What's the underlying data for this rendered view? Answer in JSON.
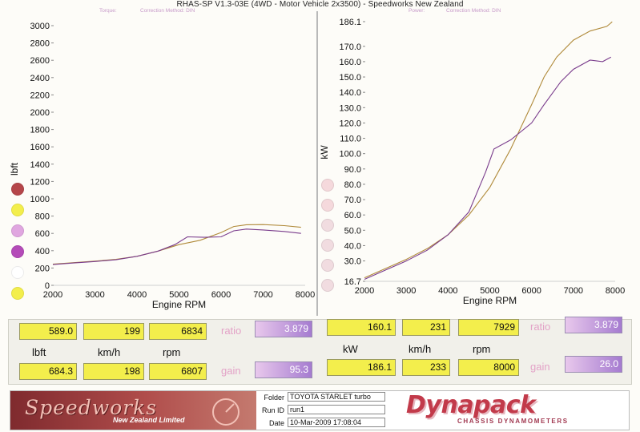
{
  "header": {
    "title": "RHAS-SP V1.3-03E  (4WD - Motor Vehicle 2x3500) - Speedworks New Zealand",
    "left_torque_label": "Torque:",
    "left_correction": "Correction Method: DIN",
    "right_power_label": "Power:",
    "right_correction": "Correction Method: DIN"
  },
  "chart_data": [
    {
      "type": "line",
      "title": "",
      "xlabel": "Engine RPM",
      "ylabel": "lbft",
      "xlim": [
        2000,
        8000
      ],
      "ylim": [
        0,
        3000
      ],
      "xticks": [
        "2000",
        "3000",
        "4000",
        "5000",
        "6000",
        "7000",
        "8000"
      ],
      "yticks": [
        "0",
        "200",
        "400",
        "600",
        "800",
        "1000",
        "1200",
        "1400",
        "1600",
        "1800",
        "2000",
        "2200",
        "2400",
        "2600",
        "2800",
        "3000"
      ],
      "series": [
        {
          "color": "#b08a3a",
          "points": [
            [
              2000,
              245
            ],
            [
              2500,
              262
            ],
            [
              3000,
              280
            ],
            [
              3500,
              300
            ],
            [
              4000,
              335
            ],
            [
              4500,
              395
            ],
            [
              5000,
              470
            ],
            [
              5500,
              520
            ],
            [
              6000,
              610
            ],
            [
              6300,
              680
            ],
            [
              6600,
              700
            ],
            [
              7000,
              702
            ],
            [
              7500,
              690
            ],
            [
              7900,
              670
            ]
          ]
        },
        {
          "color": "#7a3c8c",
          "points": [
            [
              2000,
              240
            ],
            [
              2500,
              258
            ],
            [
              3000,
              275
            ],
            [
              3500,
              295
            ],
            [
              4000,
              335
            ],
            [
              4500,
              395
            ],
            [
              4900,
              470
            ],
            [
              5200,
              560
            ],
            [
              5600,
              555
            ],
            [
              6000,
              560
            ],
            [
              6300,
              630
            ],
            [
              6600,
              650
            ],
            [
              7000,
              640
            ],
            [
              7500,
              622
            ],
            [
              7900,
              600
            ]
          ]
        }
      ]
    },
    {
      "type": "line",
      "title": "",
      "xlabel": "Engine RPM",
      "ylabel": "kW",
      "xlim": [
        2000,
        8000
      ],
      "ylim": [
        16.7,
        186.1
      ],
      "xticks": [
        "2000",
        "3000",
        "4000",
        "5000",
        "6000",
        "7000",
        "8000"
      ],
      "yticks": [
        "16.7",
        "30.0",
        "40.0",
        "50.0",
        "60.0",
        "70.0",
        "80.0",
        "90.0",
        "100.0",
        "110.0",
        "120.0",
        "130.0",
        "140.0",
        "150.0",
        "160.0",
        "170.0",
        "186.1"
      ],
      "series": [
        {
          "color": "#b08a3a",
          "points": [
            [
              2000,
              19
            ],
            [
              2500,
              25
            ],
            [
              3000,
              31
            ],
            [
              3500,
              38
            ],
            [
              4000,
              47
            ],
            [
              4500,
              60
            ],
            [
              5000,
              78
            ],
            [
              5500,
              103
            ],
            [
              6000,
              132
            ],
            [
              6300,
              150
            ],
            [
              6600,
              163
            ],
            [
              7000,
              174
            ],
            [
              7400,
              180
            ],
            [
              7800,
              183
            ],
            [
              7929,
              186
            ]
          ]
        },
        {
          "color": "#7a3c8c",
          "points": [
            [
              2000,
              18
            ],
            [
              2500,
              24
            ],
            [
              3000,
              30
            ],
            [
              3500,
              37
            ],
            [
              4000,
              47
            ],
            [
              4500,
              62
            ],
            [
              4900,
              88
            ],
            [
              5100,
              103
            ],
            [
              5500,
              109
            ],
            [
              6000,
              120
            ],
            [
              6300,
              132
            ],
            [
              6700,
              147
            ],
            [
              7000,
              155
            ],
            [
              7400,
              161
            ],
            [
              7700,
              160
            ],
            [
              7900,
              163
            ]
          ]
        }
      ]
    }
  ],
  "left_readouts": {
    "row1": {
      "value": "589.0",
      "speed": "199",
      "rpm": "6834",
      "ratio_label": "ratio",
      "ratio": "3.879"
    },
    "units": {
      "torque": "lbft",
      "speed": "km/h",
      "rpm": "rpm"
    },
    "row2": {
      "value": "684.3",
      "speed": "198",
      "rpm": "6807",
      "gain_label": "gain",
      "gain": "95.3"
    }
  },
  "right_readouts": {
    "row1": {
      "value": "160.1",
      "speed": "231",
      "rpm": "7929",
      "ratio_label": "ratio",
      "ratio": "3.879"
    },
    "units": {
      "power": "kW",
      "speed": "km/h",
      "rpm": "rpm"
    },
    "row2": {
      "value": "186.1",
      "speed": "233",
      "rpm": "8000",
      "gain_label": "gain",
      "gain": "26.0"
    }
  },
  "footer": {
    "speedworks_logo": "Speedworks",
    "speedworks_sub": "New Zealand Limited",
    "folder_label": "Folder",
    "folder_value": "TOYOTA STARLET turbo",
    "runid_label": "Run ID",
    "runid_value": "run1",
    "date_label": "Date",
    "date_value": "10-Mar-2009  17:08:04",
    "dynapack_logo": "Dynapack",
    "dynapack_sub": "CHASSIS DYNAMOMETERS"
  },
  "legend_dots": {
    "left": [
      "#b5464a",
      "#f3ee4c",
      "#e0a6e0",
      "#b44bb8",
      "#ffffff",
      "#f3ee4c"
    ],
    "right": [
      "#f5d9dc",
      "#f5d9dc",
      "#f1dce0",
      "#f1dce0",
      "#f1dce0",
      "#f1dce0"
    ]
  }
}
